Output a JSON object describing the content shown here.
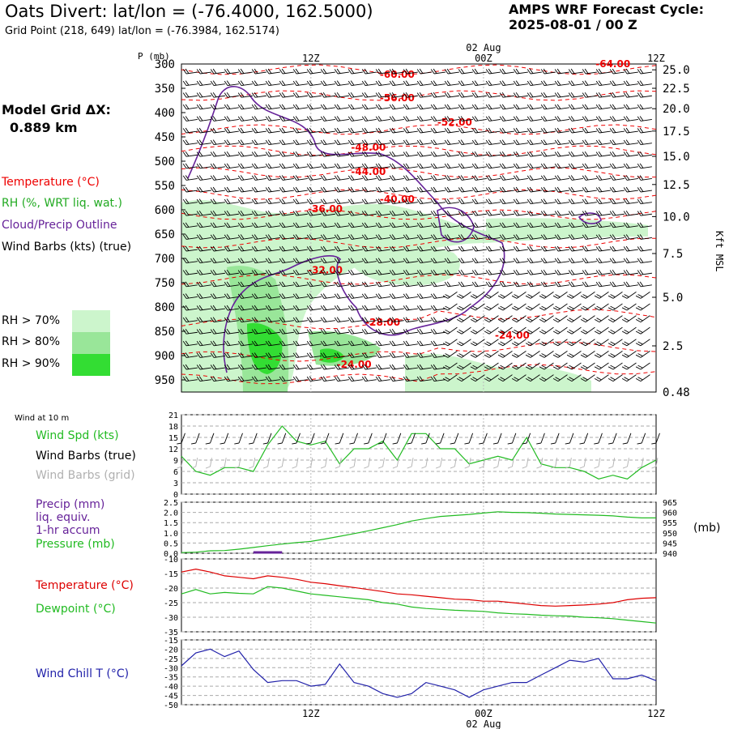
{
  "header": {
    "title": "Oats Divert:  lat/lon = (-76.4000, 162.5000)",
    "subtitle": "Grid Point (218, 649) lat/lon = (-76.3984, 162.5174)",
    "forecast_title": "AMPS WRF Forecast Cycle:",
    "forecast_cycle": "2025-08-01 / 00  Z"
  },
  "model_grid": {
    "label": "Model Grid ΔX:",
    "value": "0.889 km"
  },
  "legend": {
    "temperature": "Temperature (°C)",
    "rh": "RH (%, WRT liq. wat.)",
    "cloud": "Cloud/Precip Outline",
    "wind": "Wind Barbs (kts) (true)",
    "rh_levels": [
      {
        "label": "RH > 70%",
        "color": "#ccf5cc"
      },
      {
        "label": "RH > 80%",
        "color": "#99e699"
      },
      {
        "label": "RH > 90%",
        "color": "#33dd33"
      }
    ]
  },
  "colors": {
    "temperature": "#ee0000",
    "cloud": "#662299",
    "green": "#22bb22",
    "blue": "#2222aa",
    "grid_barb": "#b0b0b0"
  },
  "chart_data": [
    {
      "type": "heatmap",
      "name": "time-height cross section",
      "ylabel_left": "P (mb)",
      "ylabel_right": "Kft MSL",
      "pressure_ticks": [
        300,
        350,
        400,
        450,
        500,
        550,
        600,
        650,
        700,
        750,
        800,
        850,
        900,
        950
      ],
      "height_ticks": [
        "25.0",
        "22.5",
        "20.0",
        "17.5",
        "15.0",
        "12.5",
        "10.0",
        "7.5",
        "5.0",
        "2.5",
        "0.48"
      ],
      "height_tick_pressures": [
        312,
        350,
        392,
        438,
        490,
        548,
        614,
        690,
        780,
        880,
        975
      ],
      "time_ticks": [
        {
          "hour": 12,
          "label": "12Z",
          "date": ""
        },
        {
          "hour": 24,
          "label": "00Z",
          "date": "02 Aug"
        },
        {
          "hour": 36,
          "label": "12Z",
          "date": ""
        }
      ],
      "xlim": [
        3,
        36
      ],
      "plim": [
        300,
        975
      ],
      "temperature_labels": [
        {
          "text": "-64.00",
          "hour": 33,
          "p": 300
        },
        {
          "text": "-60.00",
          "hour": 18,
          "p": 322
        },
        {
          "text": "-56.00",
          "hour": 18,
          "p": 370
        },
        {
          "text": "-52.00",
          "hour": 22,
          "p": 420
        },
        {
          "text": "-48.00",
          "hour": 16,
          "p": 472
        },
        {
          "text": "-44.00",
          "hour": 16,
          "p": 522
        },
        {
          "text": "-40.00",
          "hour": 18,
          "p": 578
        },
        {
          "text": "-36.00",
          "hour": 13,
          "p": 598
        },
        {
          "text": "-32.00",
          "hour": 13,
          "p": 724
        },
        {
          "text": "-28.00",
          "hour": 17,
          "p": 832
        },
        {
          "text": "-24.00",
          "hour": 26,
          "p": 858
        },
        {
          "text": "-24.00",
          "hour": 15,
          "p": 918
        }
      ]
    },
    {
      "type": "line",
      "name": "Wind at 10 m",
      "label": "Wind at 10 m",
      "series_labels": [
        "Wind Spd (kts)",
        "Wind Barbs (true)",
        "Wind Barbs (grid)"
      ],
      "yticks": [
        0,
        3,
        6,
        9,
        12,
        15,
        18,
        21
      ],
      "ylim": [
        0,
        21
      ],
      "x": [
        3,
        4,
        5,
        6,
        7,
        8,
        9,
        10,
        11,
        12,
        13,
        14,
        15,
        16,
        17,
        18,
        19,
        20,
        21,
        22,
        23,
        24,
        25,
        26,
        27,
        28,
        29,
        30,
        31,
        32,
        33,
        34,
        35,
        36
      ],
      "values": [
        10,
        6,
        5,
        7,
        7,
        6,
        13,
        18,
        14,
        13,
        14,
        8,
        12,
        12,
        14,
        9,
        16,
        16,
        12,
        12,
        8,
        9,
        10,
        9,
        15,
        8,
        7,
        7,
        6,
        4,
        5,
        4,
        7,
        9
      ]
    },
    {
      "type": "line",
      "name": "Precip and Pressure",
      "series_labels": [
        "Precip (mm)",
        "liq. equiv.",
        "1-hr accum",
        "Pressure (mb)"
      ],
      "yticks_left": [
        "0.0",
        "0.5",
        "1.0",
        "1.5",
        "2.0",
        "2.5"
      ],
      "ylim_left": [
        0,
        2.5
      ],
      "yticks_right": [
        940,
        945,
        950,
        955,
        960,
        965
      ],
      "ylim_right": [
        940,
        965
      ],
      "right_unit": "(mb)",
      "x": [
        3,
        4,
        5,
        6,
        7,
        8,
        9,
        10,
        11,
        12,
        13,
        14,
        15,
        16,
        17,
        18,
        19,
        20,
        21,
        22,
        23,
        24,
        25,
        26,
        27,
        28,
        29,
        30,
        31,
        32,
        33,
        34,
        35,
        36
      ],
      "pressure": [
        940.3,
        940.5,
        941.2,
        941.3,
        942.0,
        942.8,
        943.7,
        944.5,
        945.2,
        945.8,
        947.0,
        948.3,
        949.6,
        951.0,
        952.5,
        954.0,
        955.8,
        957.0,
        958.0,
        958.5,
        959.0,
        959.7,
        960.3,
        960.0,
        959.9,
        959.6,
        959.2,
        959.0,
        958.8,
        958.6,
        958.3,
        957.7,
        957.3,
        957.3
      ],
      "precip": [
        {
          "start": 8,
          "end": 10,
          "value": 0.04
        }
      ]
    },
    {
      "type": "line",
      "name": "Temperature and Dewpoint",
      "series_labels": [
        "Temperature (°C)",
        "Dewpoint (°C)"
      ],
      "yticks": [
        -35,
        -30,
        -25,
        -20,
        -15,
        -10
      ],
      "ylim": [
        -35,
        -10
      ],
      "x": [
        3,
        4,
        5,
        6,
        7,
        8,
        9,
        10,
        11,
        12,
        13,
        14,
        15,
        16,
        17,
        18,
        19,
        20,
        21,
        22,
        23,
        24,
        25,
        26,
        27,
        28,
        29,
        30,
        31,
        32,
        33,
        34,
        35,
        36
      ],
      "series": [
        {
          "name": "Temperature (°C)",
          "values": [
            -14.5,
            -13.5,
            -14.5,
            -15.8,
            -16.3,
            -16.8,
            -15.8,
            -16.3,
            -17.0,
            -18.0,
            -18.5,
            -19.2,
            -19.8,
            -20.5,
            -21.2,
            -22.0,
            -22.3,
            -22.8,
            -23.3,
            -23.8,
            -24.0,
            -24.5,
            -24.5,
            -25.0,
            -25.5,
            -26.0,
            -26.2,
            -26.0,
            -25.8,
            -25.5,
            -25.0,
            -24.0,
            -23.5,
            -23.3
          ]
        },
        {
          "name": "Dewpoint (°C)",
          "values": [
            -22.0,
            -20.5,
            -22.0,
            -21.5,
            -21.8,
            -22.0,
            -19.5,
            -20.0,
            -21.0,
            -22.0,
            -22.5,
            -23.0,
            -23.5,
            -24.0,
            -25.0,
            -25.5,
            -26.5,
            -27.0,
            -27.3,
            -27.6,
            -27.8,
            -28.0,
            -28.5,
            -28.8,
            -29.0,
            -29.3,
            -29.5,
            -29.6,
            -30.0,
            -30.2,
            -30.5,
            -31.0,
            -31.5,
            -32.0
          ]
        }
      ]
    },
    {
      "type": "line",
      "name": "Wind Chill",
      "series_labels": [
        "Wind Chill T (°C)"
      ],
      "yticks": [
        -50,
        -45,
        -40,
        -35,
        -30,
        -25,
        -20,
        -15
      ],
      "ylim": [
        -50,
        -15
      ],
      "x": [
        3,
        4,
        5,
        6,
        7,
        8,
        9,
        10,
        11,
        12,
        13,
        14,
        15,
        16,
        17,
        18,
        19,
        20,
        21,
        22,
        23,
        24,
        25,
        26,
        27,
        28,
        29,
        30,
        31,
        32,
        33,
        34,
        35,
        36
      ],
      "values": [
        -29,
        -22,
        -20,
        -24,
        -21,
        -31,
        -38,
        -37,
        -37,
        -40,
        -39,
        -28,
        -38,
        -40,
        -44,
        -46,
        -44,
        -38,
        -40,
        -42,
        -46,
        -42,
        -40,
        -38,
        -38,
        -34,
        -30,
        -26,
        -27,
        -25,
        -36,
        -36,
        -34,
        -37
      ]
    }
  ]
}
